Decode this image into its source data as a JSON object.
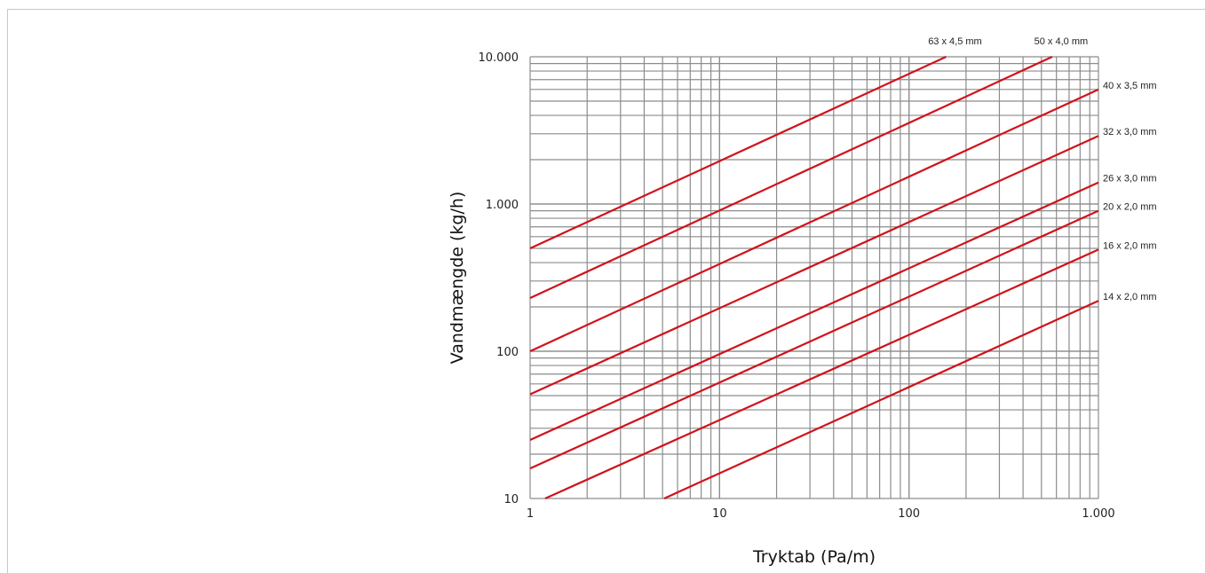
{
  "chart_data": {
    "type": "line",
    "title": "",
    "xlabel": "Tryktab (Pa/m)",
    "ylabel": "Vandmængde (kg/h)",
    "x_scale": "log",
    "y_scale": "log",
    "xlim": [
      1,
      1000
    ],
    "ylim": [
      10,
      10000
    ],
    "x_ticks": [
      {
        "value": 1,
        "label": "1"
      },
      {
        "value": 10,
        "label": "10"
      },
      {
        "value": 100,
        "label": "100"
      },
      {
        "value": 1000,
        "label": "1.000"
      }
    ],
    "y_ticks": [
      {
        "value": 10,
        "label": "10"
      },
      {
        "value": 100,
        "label": "100"
      },
      {
        "value": 1000,
        "label": "1.000"
      },
      {
        "value": 10000,
        "label": "10.000"
      }
    ],
    "grid": true,
    "line_color": "#d0121b",
    "series": [
      {
        "name": "63 x 4,5 mm",
        "points": [
          [
            1,
            500
          ],
          [
            157,
            10000
          ]
        ]
      },
      {
        "name": "50 x 4,0 mm",
        "points": [
          [
            1,
            230
          ],
          [
            570,
            10000
          ]
        ]
      },
      {
        "name": "40 x 3,5 mm",
        "points": [
          [
            1,
            100
          ],
          [
            1000,
            6000
          ]
        ]
      },
      {
        "name": "32 x 3,0 mm",
        "points": [
          [
            1,
            51
          ],
          [
            1000,
            2900
          ]
        ]
      },
      {
        "name": "26 x 3,0 mm",
        "points": [
          [
            1,
            25
          ],
          [
            1000,
            1400
          ]
        ]
      },
      {
        "name": "20 x 2,0 mm",
        "points": [
          [
            1,
            16
          ],
          [
            1000,
            900
          ]
        ]
      },
      {
        "name": "16 x 2,0 mm",
        "points": [
          [
            1.2,
            10
          ],
          [
            1000,
            490
          ]
        ]
      },
      {
        "name": "14 x 2,0 mm",
        "points": [
          [
            5.1,
            10
          ],
          [
            1000,
            220
          ]
        ]
      }
    ]
  }
}
